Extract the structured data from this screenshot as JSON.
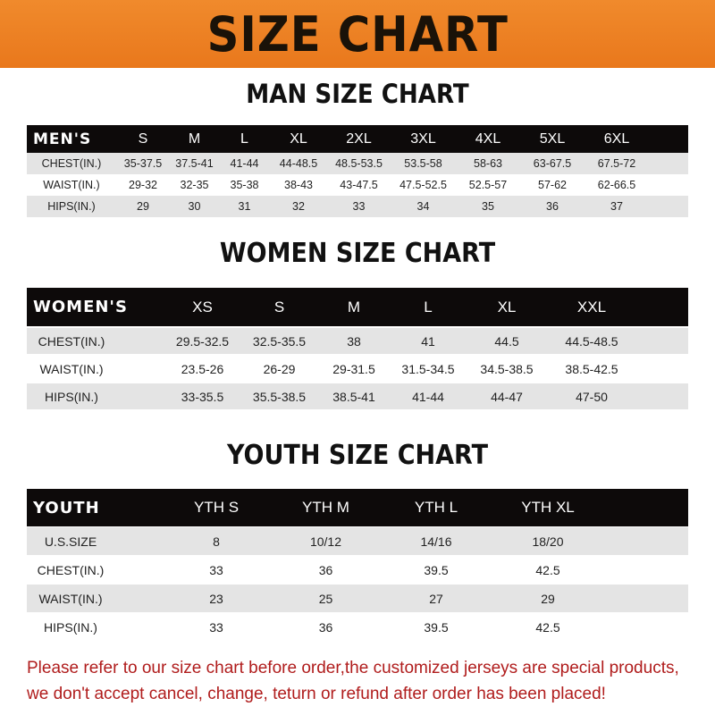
{
  "title": "SIZE CHART",
  "men": {
    "title": "MAN SIZE CHART",
    "header": "MEN'S",
    "sizes": [
      "S",
      "M",
      "L",
      "XL",
      "2XL",
      "3XL",
      "4XL",
      "5XL",
      "6XL"
    ],
    "rows": [
      {
        "label": "CHEST(IN.)",
        "values": [
          "35-37.5",
          "37.5-41",
          "41-44",
          "44-48.5",
          "48.5-53.5",
          "53.5-58",
          "58-63",
          "63-67.5",
          "67.5-72"
        ]
      },
      {
        "label": "WAIST(IN.)",
        "values": [
          "29-32",
          "32-35",
          "35-38",
          "38-43",
          "43-47.5",
          "47.5-52.5",
          "52.5-57",
          "57-62",
          "62-66.5"
        ]
      },
      {
        "label": "HIPS(IN.)",
        "values": [
          "29",
          "30",
          "31",
          "32",
          "33",
          "34",
          "35",
          "36",
          "37"
        ]
      }
    ]
  },
  "women": {
    "title": "WOMEN SIZE CHART",
    "header": "WOMEN'S",
    "sizes": [
      "XS",
      "S",
      "M",
      "L",
      "XL",
      "XXL"
    ],
    "rows": [
      {
        "label": "CHEST(IN.)",
        "values": [
          "29.5-32.5",
          "32.5-35.5",
          "38",
          "41",
          "44.5",
          "44.5-48.5"
        ]
      },
      {
        "label": "WAIST(IN.)",
        "values": [
          "23.5-26",
          "26-29",
          "29-31.5",
          "31.5-34.5",
          "34.5-38.5",
          "38.5-42.5"
        ]
      },
      {
        "label": "HIPS(IN.)",
        "values": [
          "33-35.5",
          "35.5-38.5",
          "38.5-41",
          "41-44",
          "44-47",
          "47-50"
        ]
      }
    ]
  },
  "youth": {
    "title": "YOUTH SIZE CHART",
    "header": "YOUTH",
    "sizes": [
      "YTH S",
      "YTH M",
      "YTH L",
      "YTH XL"
    ],
    "rows": [
      {
        "label": "U.S.SIZE",
        "values": [
          "8",
          "10/12",
          "14/16",
          "18/20"
        ]
      },
      {
        "label": "CHEST(IN.)",
        "values": [
          "33",
          "36",
          "39.5",
          "42.5"
        ]
      },
      {
        "label": "WAIST(IN.)",
        "values": [
          "23",
          "25",
          "27",
          "29"
        ]
      },
      {
        "label": "HIPS(IN.)",
        "values": [
          "33",
          "36",
          "39.5",
          "42.5"
        ]
      }
    ]
  },
  "notice": [
    "Please refer to our size chart before order,the customized jerseys are special products,",
    "we don't accept cancel, change, teturn or refund after order has been placed!"
  ],
  "colors": {
    "banner": "#ee8226",
    "header_row": "#0d0a0a",
    "stripe": "#e4e4e4",
    "notice": "#b01c1c"
  }
}
